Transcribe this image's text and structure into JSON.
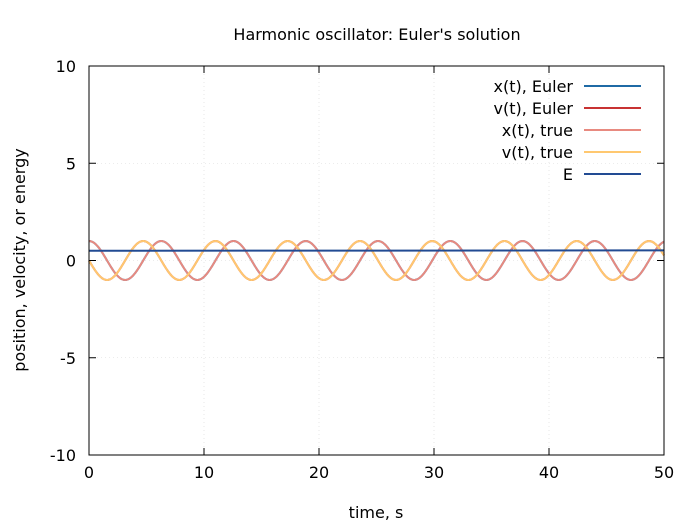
{
  "chart_data": {
    "type": "line",
    "title": "Harmonic oscillator: Euler's solution",
    "xlabel": "time, s",
    "ylabel": "position, velocity, or energy",
    "xlim": [
      0,
      50
    ],
    "ylim": [
      -10,
      10
    ],
    "xticks": [
      "0",
      "10",
      "20",
      "30",
      "40",
      "50"
    ],
    "yticks": [
      "-10",
      "-5",
      "0",
      "5",
      "10"
    ],
    "grid": true,
    "legend_position": "top-right",
    "omega": 1.0,
    "series": [
      {
        "name": "x(t), Euler",
        "color": "#1f6aa5",
        "kind": "cos",
        "amplitude": 1.0,
        "growth": 0.0
      },
      {
        "name": "v(t), Euler",
        "color": "#c83232",
        "kind": "negsin",
        "amplitude": 1.0,
        "growth": 0.0
      },
      {
        "name": "x(t), true",
        "color": "#e88a80",
        "kind": "cos",
        "amplitude": 1.0,
        "growth": 0.0
      },
      {
        "name": "v(t), true",
        "color": "#ffc870",
        "kind": "negsin",
        "amplitude": 1.0,
        "growth": 0.0
      },
      {
        "name": "E",
        "color": "#224b93",
        "kind": "linear",
        "x": [
          0,
          50
        ],
        "y": [
          0.5,
          0.52
        ]
      }
    ]
  }
}
